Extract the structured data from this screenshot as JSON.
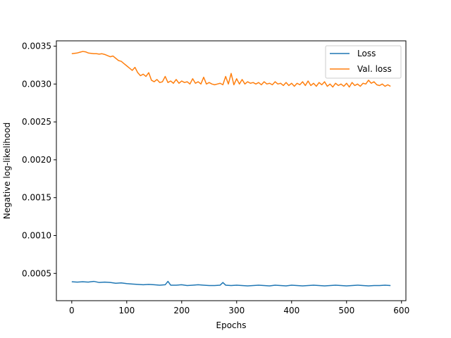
{
  "chart_data": {
    "type": "line",
    "title": "",
    "xlabel": "Epochs",
    "ylabel": "Negative log-likelihood",
    "xlim": [
      -28,
      608
    ],
    "ylim": [
      0.00014,
      0.00357
    ],
    "xticks": [
      0,
      100,
      200,
      300,
      400,
      500,
      600
    ],
    "xtick_labels": [
      "0",
      "100",
      "200",
      "300",
      "400",
      "500",
      "600"
    ],
    "yticks": [
      0.0005,
      0.001,
      0.0015,
      0.002,
      0.0025,
      0.003,
      0.0035
    ],
    "ytick_labels": [
      "0.0005",
      "0.0010",
      "0.0015",
      "0.0020",
      "0.0025",
      "0.0030",
      "0.0035"
    ],
    "grid": false,
    "legend_position": "top-right",
    "series": [
      {
        "name": "Loss",
        "color": "#1f77b4",
        "x": [
          0,
          10,
          20,
          30,
          40,
          50,
          60,
          70,
          80,
          90,
          100,
          110,
          120,
          130,
          140,
          150,
          160,
          170,
          175,
          180,
          190,
          200,
          210,
          220,
          230,
          240,
          250,
          260,
          270,
          275,
          280,
          290,
          300,
          310,
          320,
          330,
          340,
          350,
          360,
          370,
          380,
          390,
          400,
          410,
          420,
          430,
          440,
          450,
          460,
          470,
          480,
          490,
          500,
          510,
          520,
          530,
          540,
          550,
          560,
          570,
          580
        ],
        "y": [
          0.00039,
          0.000385,
          0.00039,
          0.000385,
          0.000395,
          0.00038,
          0.000385,
          0.00038,
          0.00037,
          0.000375,
          0.000365,
          0.00036,
          0.000355,
          0.00035,
          0.000355,
          0.00035,
          0.000345,
          0.00035,
          0.000395,
          0.000345,
          0.000345,
          0.00035,
          0.00034,
          0.000345,
          0.00035,
          0.000345,
          0.00034,
          0.00034,
          0.000345,
          0.00038,
          0.000345,
          0.00034,
          0.000345,
          0.00034,
          0.000335,
          0.00034,
          0.000345,
          0.00034,
          0.000335,
          0.000345,
          0.00034,
          0.000335,
          0.000345,
          0.00034,
          0.000335,
          0.00034,
          0.000345,
          0.00034,
          0.000335,
          0.00034,
          0.000345,
          0.00034,
          0.000335,
          0.00034,
          0.000345,
          0.00034,
          0.000335,
          0.00034,
          0.00034,
          0.000345,
          0.00034
        ]
      },
      {
        "name": "Val. loss",
        "color": "#ff7f0e",
        "x": [
          0,
          5,
          10,
          15,
          20,
          25,
          30,
          35,
          40,
          45,
          50,
          55,
          60,
          65,
          70,
          75,
          80,
          85,
          90,
          95,
          100,
          105,
          110,
          115,
          120,
          125,
          130,
          135,
          140,
          145,
          150,
          155,
          160,
          165,
          170,
          175,
          180,
          185,
          190,
          195,
          200,
          205,
          210,
          215,
          220,
          225,
          230,
          235,
          240,
          245,
          250,
          255,
          260,
          265,
          270,
          275,
          280,
          285,
          290,
          295,
          300,
          305,
          310,
          315,
          320,
          325,
          330,
          335,
          340,
          345,
          350,
          355,
          360,
          365,
          370,
          375,
          380,
          385,
          390,
          395,
          400,
          405,
          410,
          415,
          420,
          425,
          430,
          435,
          440,
          445,
          450,
          455,
          460,
          465,
          470,
          475,
          480,
          485,
          490,
          495,
          500,
          505,
          510,
          515,
          520,
          525,
          530,
          535,
          540,
          545,
          550,
          555,
          560,
          565,
          570,
          575,
          580
        ],
        "y": [
          0.0034,
          0.003405,
          0.00341,
          0.00342,
          0.00343,
          0.003425,
          0.00341,
          0.003405,
          0.0034,
          0.0034,
          0.003395,
          0.0034,
          0.00339,
          0.003375,
          0.00336,
          0.00337,
          0.00334,
          0.00331,
          0.0033,
          0.00327,
          0.00324,
          0.00321,
          0.00318,
          0.00322,
          0.00315,
          0.00311,
          0.00313,
          0.0031,
          0.00315,
          0.00305,
          0.00303,
          0.00306,
          0.00302,
          0.00303,
          0.0031,
          0.00302,
          0.00304,
          0.00301,
          0.00306,
          0.00301,
          0.00304,
          0.00302,
          0.00303,
          0.003,
          0.00307,
          0.00301,
          0.00303,
          0.003,
          0.00309,
          0.003,
          0.00302,
          0.003,
          0.00299,
          0.003,
          0.00301,
          0.00299,
          0.0031,
          0.003,
          0.00314,
          0.00299,
          0.00307,
          0.003,
          0.00306,
          0.003,
          0.00303,
          0.00301,
          0.00302,
          0.003,
          0.00302,
          0.00299,
          0.00303,
          0.003,
          0.00301,
          0.00299,
          0.00303,
          0.003,
          0.00301,
          0.00298,
          0.00302,
          0.00298,
          0.00301,
          0.00297,
          0.00301,
          0.00299,
          0.00303,
          0.00298,
          0.00304,
          0.00298,
          0.00301,
          0.00297,
          0.00302,
          0.00299,
          0.00303,
          0.00297,
          0.003,
          0.00296,
          0.00301,
          0.00298,
          0.003,
          0.00297,
          0.00301,
          0.00296,
          0.00302,
          0.00298,
          0.003,
          0.00297,
          0.00301,
          0.003,
          0.00305,
          0.00301,
          0.00303,
          0.00299,
          0.00298,
          0.003,
          0.00297,
          0.00299,
          0.00297
        ]
      }
    ]
  }
}
